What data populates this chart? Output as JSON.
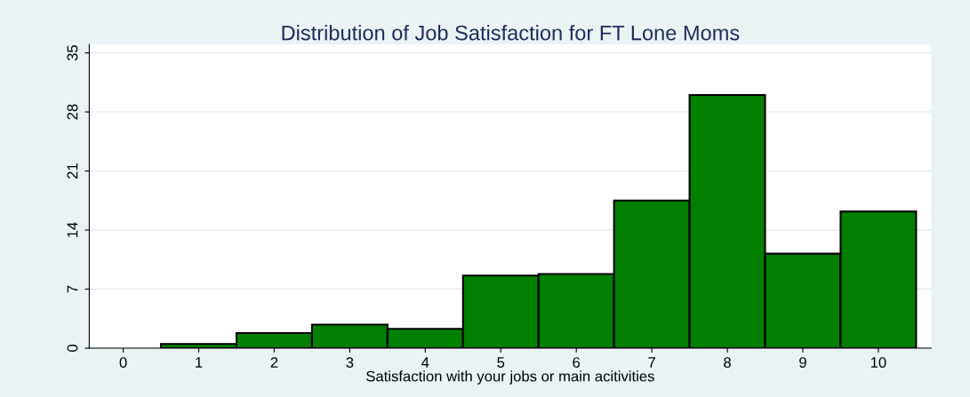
{
  "chart_data": {
    "type": "histogram",
    "title": "Distribution of Job Satisfaction for FT Lone Moms",
    "xlabel": "Satisfaction with your jobs or main acitivities",
    "bins": [
      0.5,
      1.5,
      2.5,
      3.5,
      4.5,
      5.5,
      6.5,
      7.5,
      8.5,
      9.5,
      10.5
    ],
    "values": [
      0.5,
      1.8,
      2.8,
      2.3,
      8.6,
      8.8,
      17.5,
      30.0,
      11.2,
      16.2
    ],
    "color": "#007f00",
    "xlim": [
      -0.45,
      10.7
    ],
    "xticks": [
      0,
      1,
      2,
      3,
      4,
      5,
      6,
      7,
      8,
      9,
      10
    ],
    "ylim": [
      0,
      36
    ],
    "yticks": [
      0,
      7,
      14,
      21,
      28,
      35
    ],
    "grid": "y"
  }
}
